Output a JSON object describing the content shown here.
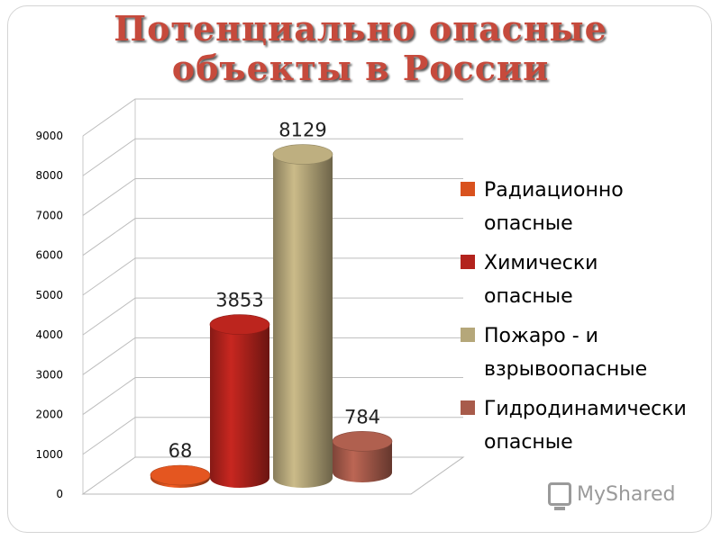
{
  "title_lines": [
    "Потенциально опасные",
    "объекты в России"
  ],
  "watermark": "MyShared",
  "colors": {
    "title": "#c64a3c",
    "series": [
      "#d9521e",
      "#b3231d",
      "#b5a77a",
      "#a85b4b"
    ]
  },
  "chart_data": {
    "type": "bar",
    "categories": [
      "Радиационно опасные",
      "Химически опасные",
      "Пожаро - и взрывоопасные",
      "Гидродинамически опасные"
    ],
    "values": [
      68,
      3853,
      8129,
      784
    ],
    "data_labels": [
      "68",
      "3853",
      "8129",
      "784"
    ],
    "ylim": [
      0,
      9000
    ],
    "yticks": [
      "0",
      "1000",
      "2000",
      "3000",
      "4000",
      "5000",
      "6000",
      "7000",
      "8000",
      "9000"
    ],
    "legend": [
      [
        "Радиационно",
        "опасные"
      ],
      [
        "Химически",
        "опасные"
      ],
      [
        "Пожаро - и",
        "взрывоопасные"
      ],
      [
        "Гидродинамически",
        "опасные"
      ]
    ],
    "legend_position": "right",
    "grid": true,
    "style": "3d-cylinder"
  }
}
